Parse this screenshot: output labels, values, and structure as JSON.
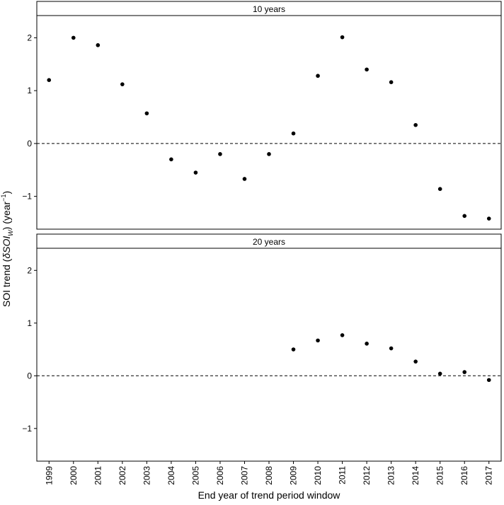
{
  "chart_data": {
    "type": "scatter",
    "xlabel": "End year of trend period window",
    "ylabel": {
      "prefix": "SOI trend (",
      "delta": "δ",
      "soi": "SOI",
      "subscript": "W",
      "middle": ") (year",
      "superscript": "−1",
      "suffix": ")"
    },
    "ylim": [
      -1.62,
      2.42
    ],
    "yticks": [
      -1,
      0,
      1,
      2
    ],
    "ytick_labels": [
      "−1",
      "0",
      "1",
      "2"
    ],
    "reference_line_y": 0,
    "x_categories": [
      "1999",
      "2000",
      "2001",
      "2002",
      "2003",
      "2004",
      "2005",
      "2006",
      "2007",
      "2008",
      "2009",
      "2010",
      "2011",
      "2012",
      "2013",
      "2014",
      "2015",
      "2016",
      "2017"
    ],
    "panels": [
      {
        "label": "10 years",
        "points": [
          {
            "x": "1999",
            "y": 1.2
          },
          {
            "x": "2000",
            "y": 2.0
          },
          {
            "x": "2001",
            "y": 1.86
          },
          {
            "x": "2002",
            "y": 1.12
          },
          {
            "x": "2003",
            "y": 0.57
          },
          {
            "x": "2004",
            "y": -0.3
          },
          {
            "x": "2005",
            "y": -0.55
          },
          {
            "x": "2006",
            "y": -0.2
          },
          {
            "x": "2007",
            "y": -0.67
          },
          {
            "x": "2008",
            "y": -0.2
          },
          {
            "x": "2009",
            "y": 0.19
          },
          {
            "x": "2010",
            "y": 1.28
          },
          {
            "x": "2011",
            "y": 2.01
          },
          {
            "x": "2012",
            "y": 1.4
          },
          {
            "x": "2013",
            "y": 1.16
          },
          {
            "x": "2014",
            "y": 0.35
          },
          {
            "x": "2015",
            "y": -0.86
          },
          {
            "x": "2016",
            "y": -1.37
          },
          {
            "x": "2017",
            "y": -1.42
          }
        ]
      },
      {
        "label": "20 years",
        "points": [
          {
            "x": "2009",
            "y": 0.5
          },
          {
            "x": "2010",
            "y": 0.67
          },
          {
            "x": "2011",
            "y": 0.77
          },
          {
            "x": "2012",
            "y": 0.61
          },
          {
            "x": "2013",
            "y": 0.52
          },
          {
            "x": "2014",
            "y": 0.27
          },
          {
            "x": "2015",
            "y": 0.04
          },
          {
            "x": "2016",
            "y": 0.07
          },
          {
            "x": "2017",
            "y": -0.08
          }
        ]
      }
    ],
    "colors": {
      "points": "#000000",
      "frame": "#000000",
      "strip_bg": "#ffffff"
    }
  }
}
